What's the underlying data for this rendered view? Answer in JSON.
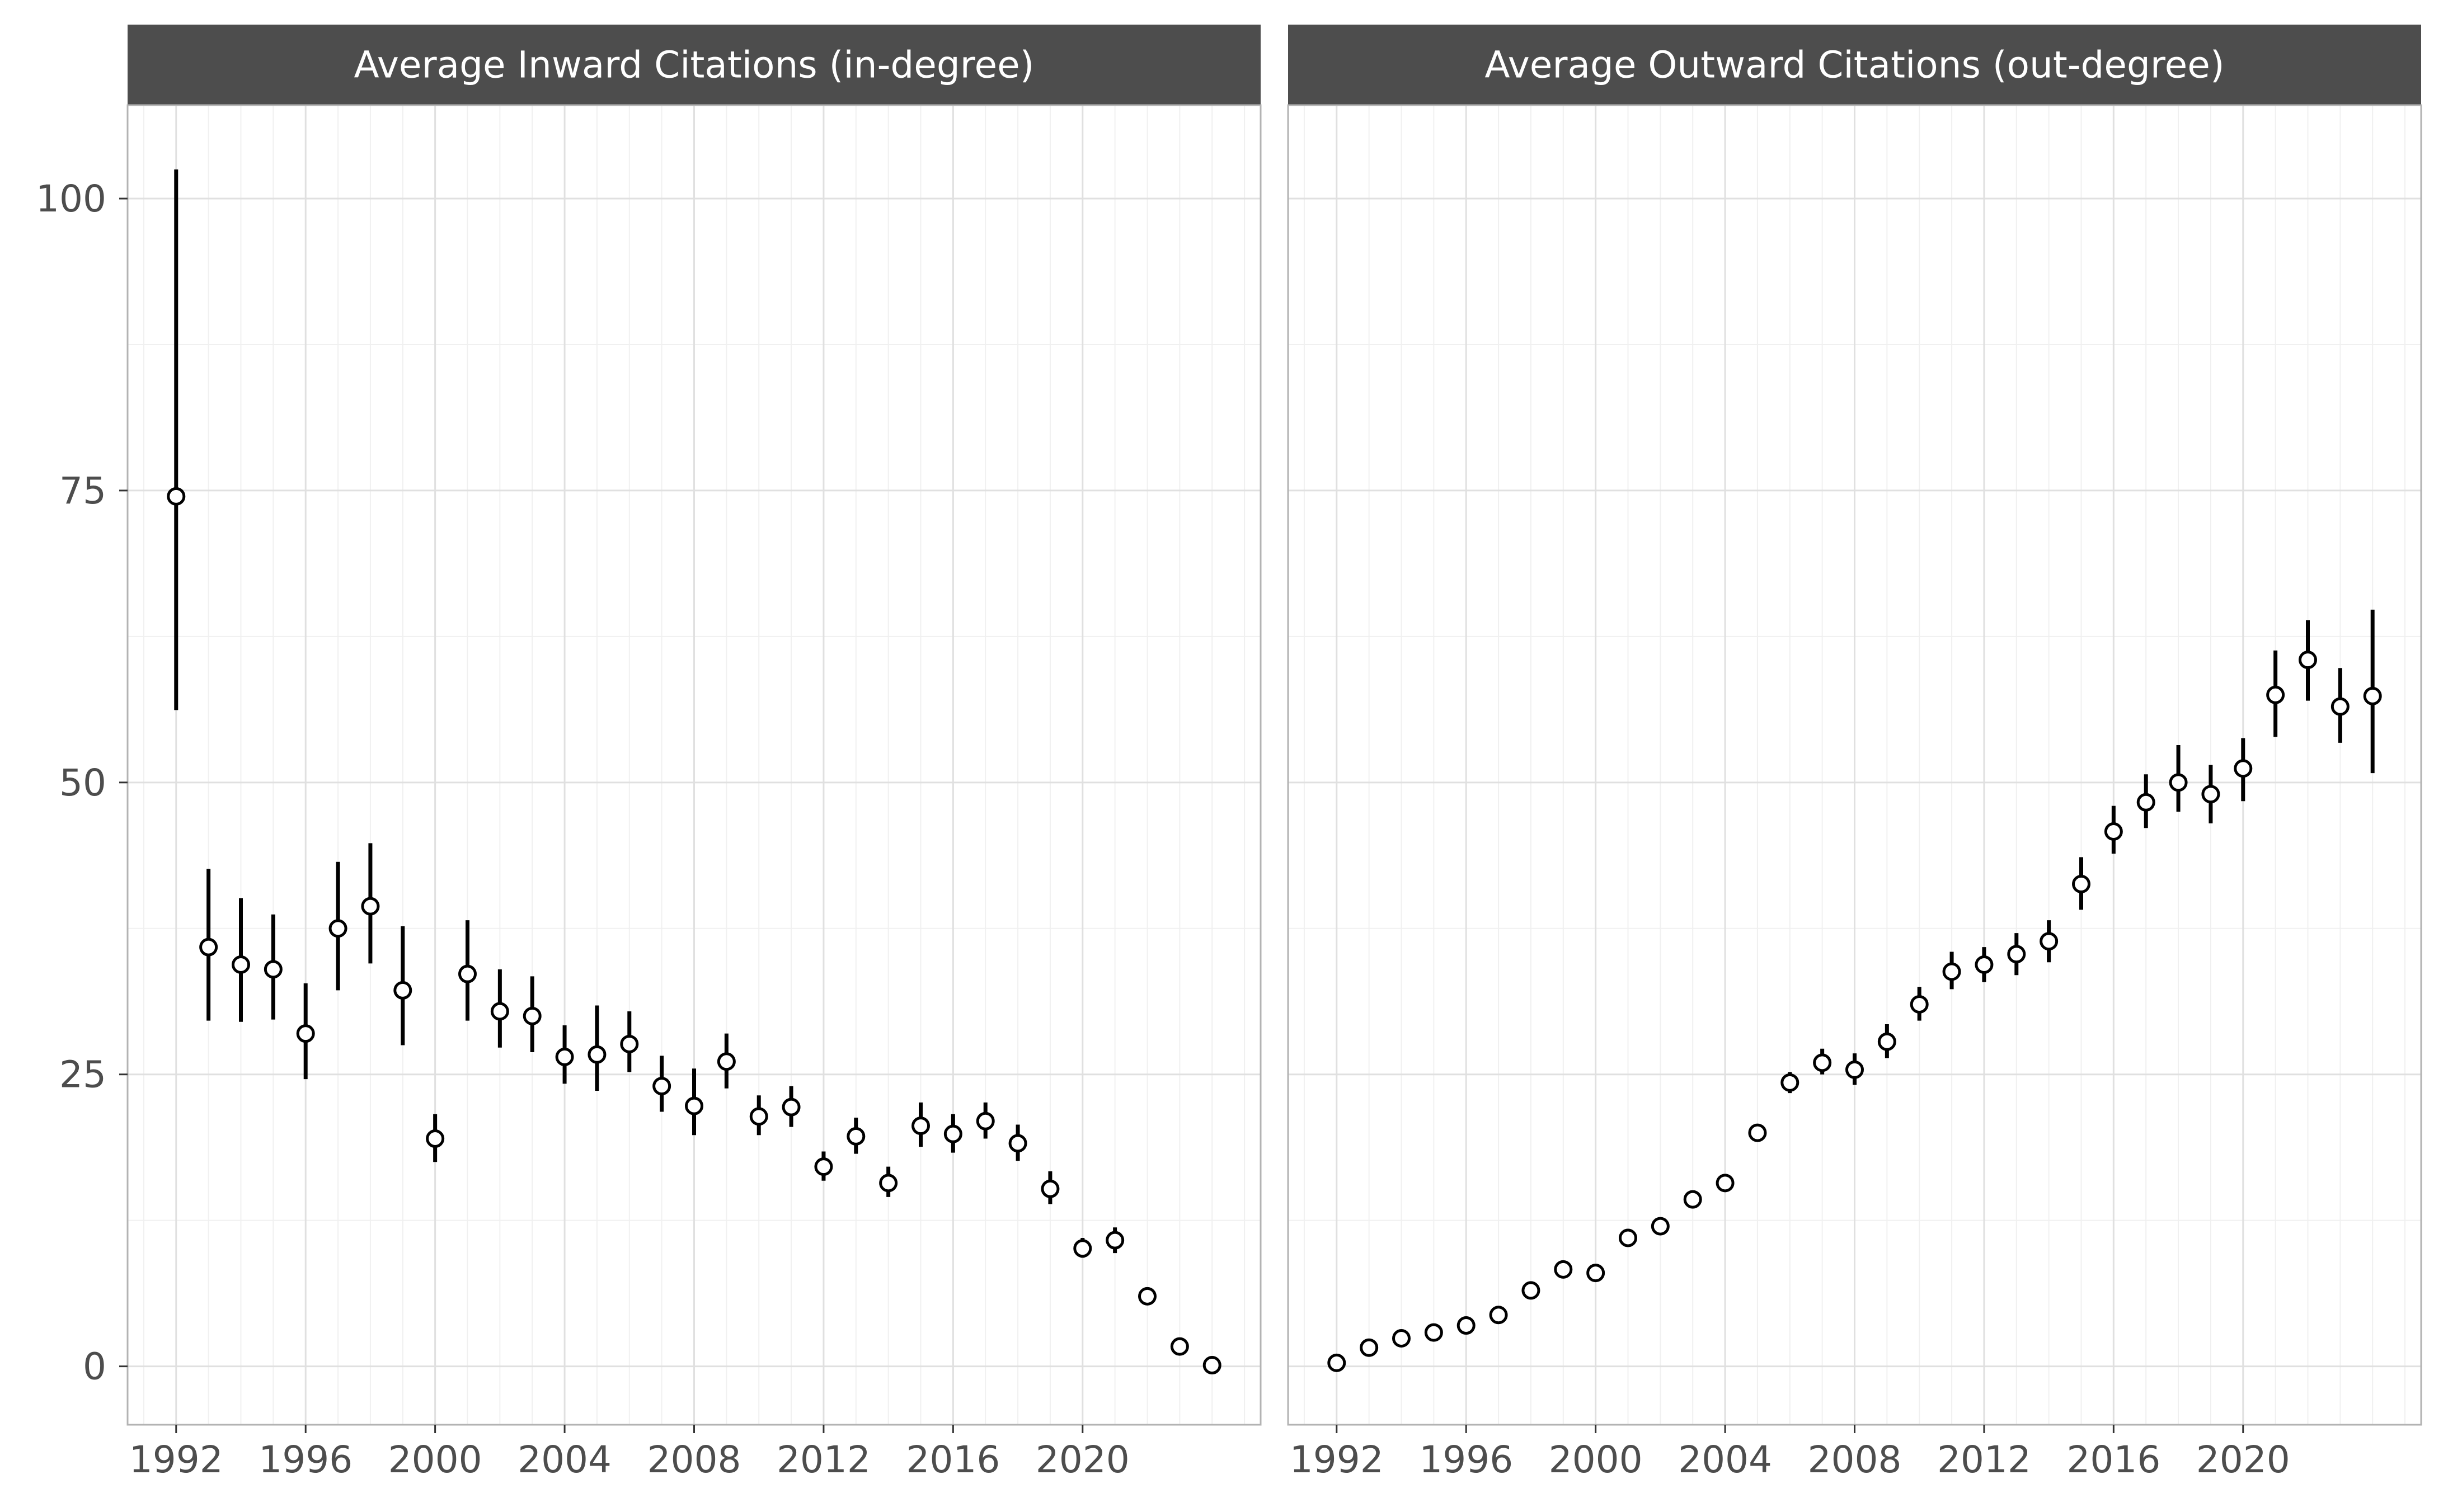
{
  "chart_data": [
    {
      "type": "scatter",
      "title": "Average Inward Citations (in-degree)",
      "xlabel": "",
      "ylabel": "",
      "xlim": [
        1990.5,
        2025.5
      ],
      "ylim": [
        -5,
        108
      ],
      "xticks": [
        1992,
        1996,
        2000,
        2004,
        2008,
        2012,
        2016,
        2020
      ],
      "yticks": [
        0,
        25,
        50,
        75,
        100
      ],
      "grid": true,
      "error_bars": true,
      "points": [
        {
          "x": 1992,
          "y": 74.5,
          "lo": 56.2,
          "hi": 102.5
        },
        {
          "x": 1993,
          "y": 35.9,
          "lo": 29.6,
          "hi": 42.6
        },
        {
          "x": 1994,
          "y": 34.4,
          "lo": 29.5,
          "hi": 40.1
        },
        {
          "x": 1995,
          "y": 34.0,
          "lo": 29.7,
          "hi": 38.7
        },
        {
          "x": 1996,
          "y": 28.5,
          "lo": 24.6,
          "hi": 32.8
        },
        {
          "x": 1997,
          "y": 37.5,
          "lo": 32.2,
          "hi": 43.2
        },
        {
          "x": 1998,
          "y": 39.4,
          "lo": 34.5,
          "hi": 44.8
        },
        {
          "x": 1999,
          "y": 32.2,
          "lo": 27.5,
          "hi": 37.7
        },
        {
          "x": 2000,
          "y": 19.5,
          "lo": 17.5,
          "hi": 21.6
        },
        {
          "x": 2001,
          "y": 33.6,
          "lo": 29.6,
          "hi": 38.2
        },
        {
          "x": 2002,
          "y": 30.4,
          "lo": 27.3,
          "hi": 34.0
        },
        {
          "x": 2003,
          "y": 30.0,
          "lo": 26.9,
          "hi": 33.4
        },
        {
          "x": 2004,
          "y": 26.5,
          "lo": 24.2,
          "hi": 29.2
        },
        {
          "x": 2005,
          "y": 26.7,
          "lo": 23.6,
          "hi": 30.9
        },
        {
          "x": 2006,
          "y": 27.6,
          "lo": 25.2,
          "hi": 30.4
        },
        {
          "x": 2007,
          "y": 24.0,
          "lo": 21.8,
          "hi": 26.6
        },
        {
          "x": 2008,
          "y": 22.3,
          "lo": 19.8,
          "hi": 25.5
        },
        {
          "x": 2009,
          "y": 26.1,
          "lo": 23.8,
          "hi": 28.5
        },
        {
          "x": 2010,
          "y": 21.4,
          "lo": 19.8,
          "hi": 23.2
        },
        {
          "x": 2011,
          "y": 22.2,
          "lo": 20.5,
          "hi": 24.0
        },
        {
          "x": 2012,
          "y": 17.1,
          "lo": 15.9,
          "hi": 18.4
        },
        {
          "x": 2013,
          "y": 19.7,
          "lo": 18.2,
          "hi": 21.3
        },
        {
          "x": 2014,
          "y": 15.7,
          "lo": 14.5,
          "hi": 17.1
        },
        {
          "x": 2015,
          "y": 20.6,
          "lo": 18.8,
          "hi": 22.6
        },
        {
          "x": 2016,
          "y": 19.9,
          "lo": 18.3,
          "hi": 21.6
        },
        {
          "x": 2017,
          "y": 21.0,
          "lo": 19.5,
          "hi": 22.6
        },
        {
          "x": 2018,
          "y": 19.1,
          "lo": 17.6,
          "hi": 20.7
        },
        {
          "x": 2019,
          "y": 15.2,
          "lo": 13.9,
          "hi": 16.7
        },
        {
          "x": 2020,
          "y": 10.1,
          "lo": 9.3,
          "hi": 11.0
        },
        {
          "x": 2021,
          "y": 10.8,
          "lo": 9.7,
          "hi": 11.9
        },
        {
          "x": 2022,
          "y": 6.0,
          "lo": 6.0,
          "hi": 6.0
        },
        {
          "x": 2023,
          "y": 1.7,
          "lo": 1.7,
          "hi": 1.7
        },
        {
          "x": 2024,
          "y": 0.1,
          "lo": 0.1,
          "hi": 0.1
        }
      ]
    },
    {
      "type": "scatter",
      "title": "Average Outward Citations (out-degree)",
      "xlabel": "",
      "ylabel": "",
      "xlim": [
        1990.5,
        2025.5
      ],
      "ylim": [
        -5,
        108
      ],
      "xticks": [
        1992,
        1996,
        2000,
        2004,
        2008,
        2012,
        2016,
        2020
      ],
      "yticks": [
        0,
        25,
        50,
        75,
        100
      ],
      "grid": true,
      "error_bars": true,
      "points": [
        {
          "x": 1992,
          "y": 0.3,
          "lo": 0.3,
          "hi": 0.3
        },
        {
          "x": 1993,
          "y": 1.6,
          "lo": 1.6,
          "hi": 1.6
        },
        {
          "x": 1994,
          "y": 2.4,
          "lo": 2.4,
          "hi": 2.4
        },
        {
          "x": 1995,
          "y": 2.9,
          "lo": 2.9,
          "hi": 2.9
        },
        {
          "x": 1996,
          "y": 3.5,
          "lo": 3.5,
          "hi": 3.5
        },
        {
          "x": 1997,
          "y": 4.4,
          "lo": 4.4,
          "hi": 4.4
        },
        {
          "x": 1998,
          "y": 6.5,
          "lo": 6.5,
          "hi": 6.5
        },
        {
          "x": 1999,
          "y": 8.3,
          "lo": 8.3,
          "hi": 8.3
        },
        {
          "x": 2000,
          "y": 8.0,
          "lo": 8.0,
          "hi": 8.0
        },
        {
          "x": 2001,
          "y": 11.0,
          "lo": 11.0,
          "hi": 11.0
        },
        {
          "x": 2002,
          "y": 12.0,
          "lo": 12.0,
          "hi": 12.0
        },
        {
          "x": 2003,
          "y": 14.3,
          "lo": 14.3,
          "hi": 14.3
        },
        {
          "x": 2004,
          "y": 15.7,
          "lo": 15.7,
          "hi": 15.7
        },
        {
          "x": 2005,
          "y": 20.0,
          "lo": 20.0,
          "hi": 20.0
        },
        {
          "x": 2006,
          "y": 24.3,
          "lo": 23.4,
          "hi": 25.2
        },
        {
          "x": 2007,
          "y": 26.0,
          "lo": 25.0,
          "hi": 27.2
        },
        {
          "x": 2008,
          "y": 25.4,
          "lo": 24.1,
          "hi": 26.8
        },
        {
          "x": 2009,
          "y": 27.8,
          "lo": 26.4,
          "hi": 29.3
        },
        {
          "x": 2010,
          "y": 31.0,
          "lo": 29.6,
          "hi": 32.5
        },
        {
          "x": 2011,
          "y": 33.8,
          "lo": 32.3,
          "hi": 35.5
        },
        {
          "x": 2012,
          "y": 34.4,
          "lo": 32.9,
          "hi": 35.9
        },
        {
          "x": 2013,
          "y": 35.3,
          "lo": 33.5,
          "hi": 37.1
        },
        {
          "x": 2014,
          "y": 36.4,
          "lo": 34.6,
          "hi": 38.2
        },
        {
          "x": 2015,
          "y": 41.3,
          "lo": 39.1,
          "hi": 43.6
        },
        {
          "x": 2016,
          "y": 45.8,
          "lo": 43.9,
          "hi": 48.0
        },
        {
          "x": 2017,
          "y": 48.3,
          "lo": 46.1,
          "hi": 50.7
        },
        {
          "x": 2018,
          "y": 50.0,
          "lo": 47.5,
          "hi": 53.2
        },
        {
          "x": 2019,
          "y": 49.0,
          "lo": 46.5,
          "hi": 51.5
        },
        {
          "x": 2020,
          "y": 51.2,
          "lo": 48.4,
          "hi": 53.8
        },
        {
          "x": 2021,
          "y": 57.5,
          "lo": 53.9,
          "hi": 61.3
        },
        {
          "x": 2022,
          "y": 60.5,
          "lo": 57.0,
          "hi": 63.9
        },
        {
          "x": 2023,
          "y": 56.5,
          "lo": 53.4,
          "hi": 59.8
        },
        {
          "x": 2024,
          "y": 57.4,
          "lo": 50.8,
          "hi": 64.8
        }
      ]
    }
  ]
}
